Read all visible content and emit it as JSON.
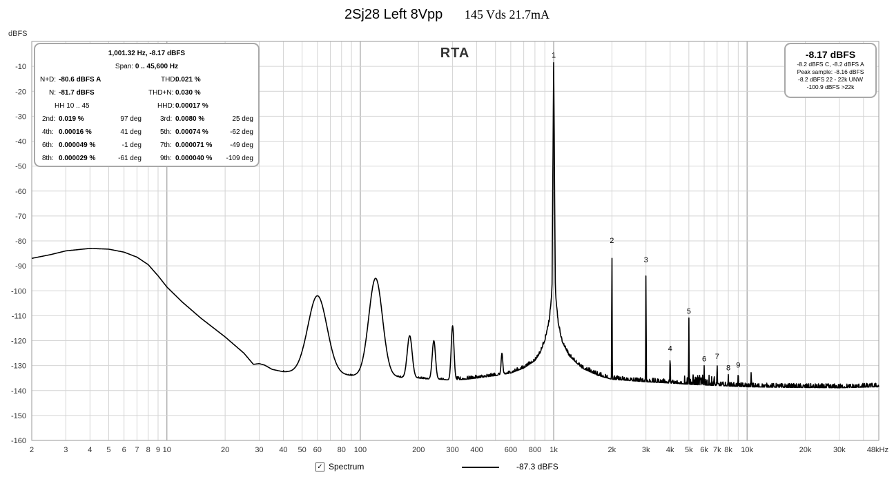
{
  "title": {
    "main": "2Sj28 Left  8Vpp",
    "sub": "145 Vds 21.7mA"
  },
  "chart_data": {
    "type": "line",
    "panel_label": "RTA",
    "ylabel": "dBFS",
    "xlabel_unit": "kHz",
    "xscale": "log",
    "xlim": [
      2,
      48000
    ],
    "ylim": [
      -160,
      0
    ],
    "grid": true,
    "y_ticks": [
      -10,
      -20,
      -30,
      -40,
      -50,
      -60,
      -70,
      -80,
      -90,
      -100,
      -110,
      -120,
      -130,
      -140,
      -150,
      -160
    ],
    "x_ticks": [
      {
        "v": 2,
        "label": "2"
      },
      {
        "v": 3,
        "label": "3"
      },
      {
        "v": 4,
        "label": "4"
      },
      {
        "v": 5,
        "label": "5"
      },
      {
        "v": 6,
        "label": "6"
      },
      {
        "v": 7,
        "label": "7"
      },
      {
        "v": 8,
        "label": "8"
      },
      {
        "v": 9,
        "label": "9"
      },
      {
        "v": 10,
        "label": "10"
      },
      {
        "v": 20,
        "label": "20"
      },
      {
        "v": 30,
        "label": "30"
      },
      {
        "v": 40,
        "label": "40"
      },
      {
        "v": 50,
        "label": "50"
      },
      {
        "v": 60,
        "label": "60"
      },
      {
        "v": 80,
        "label": "80"
      },
      {
        "v": 100,
        "label": "100"
      },
      {
        "v": 200,
        "label": "200"
      },
      {
        "v": 300,
        "label": "300"
      },
      {
        "v": 400,
        "label": "400"
      },
      {
        "v": 600,
        "label": "600"
      },
      {
        "v": 800,
        "label": "800"
      },
      {
        "v": 1000,
        "label": "1k"
      },
      {
        "v": 2000,
        "label": "2k"
      },
      {
        "v": 3000,
        "label": "3k"
      },
      {
        "v": 4000,
        "label": "4k"
      },
      {
        "v": 5000,
        "label": "5k"
      },
      {
        "v": 6000,
        "label": "6k"
      },
      {
        "v": 7000,
        "label": "7k"
      },
      {
        "v": 8000,
        "label": "8k"
      },
      {
        "v": 10000,
        "label": "10k"
      },
      {
        "v": 20000,
        "label": "20k"
      },
      {
        "v": 30000,
        "label": "30k"
      },
      {
        "v": 48000,
        "label": "48kHz"
      }
    ],
    "series": [
      {
        "name": "Spectrum",
        "color": "#000000",
        "baseline": [
          [
            2,
            -87
          ],
          [
            2.5,
            -85.5
          ],
          [
            3,
            -84
          ],
          [
            4,
            -83
          ],
          [
            5,
            -83.3
          ],
          [
            6,
            -84.5
          ],
          [
            7,
            -86.5
          ],
          [
            8,
            -89.5
          ],
          [
            9,
            -94
          ],
          [
            10,
            -98.5
          ],
          [
            12,
            -104.5
          ],
          [
            15,
            -111
          ],
          [
            20,
            -118.5
          ],
          [
            25,
            -125
          ],
          [
            28,
            -129.5
          ],
          [
            30,
            -129.2
          ],
          [
            32,
            -129.8
          ],
          [
            35,
            -131.5
          ],
          [
            40,
            -132.5
          ],
          [
            45,
            -132.8
          ],
          [
            50,
            -133
          ],
          [
            55,
            -133.5
          ],
          [
            70,
            -133.5
          ],
          [
            90,
            -134
          ],
          [
            100,
            -134
          ],
          [
            110,
            -134.2
          ],
          [
            150,
            -134.5
          ],
          [
            175,
            -135
          ],
          [
            200,
            -135
          ],
          [
            230,
            -135.5
          ],
          [
            260,
            -135.5
          ],
          [
            290,
            -135.8
          ],
          [
            350,
            -135.5
          ],
          [
            400,
            -135
          ],
          [
            450,
            -134.5
          ],
          [
            500,
            -134
          ],
          [
            600,
            -133
          ],
          [
            700,
            -131
          ],
          [
            800,
            -128
          ],
          [
            850,
            -125
          ],
          [
            900,
            -120
          ],
          [
            950,
            -112
          ],
          [
            980,
            -100
          ],
          [
            1000,
            -8.2
          ],
          [
            1020,
            -100
          ],
          [
            1050,
            -112
          ],
          [
            1100,
            -120
          ],
          [
            1200,
            -126
          ],
          [
            1400,
            -131
          ],
          [
            1700,
            -134
          ],
          [
            2000,
            -135.5
          ],
          [
            3000,
            -136.5
          ],
          [
            4000,
            -137
          ],
          [
            5000,
            -137.5
          ],
          [
            7000,
            -138
          ],
          [
            10000,
            -138.5
          ],
          [
            15000,
            -138.7
          ],
          [
            20000,
            -138.8
          ],
          [
            30000,
            -138.9
          ],
          [
            48000,
            -138.5
          ]
        ],
        "peaks": [
          {
            "f": 60,
            "db": -102,
            "w": 0.07
          },
          {
            "f": 120,
            "db": -95,
            "w": 0.05
          },
          {
            "f": 180,
            "db": -118,
            "w": 0.018
          },
          {
            "f": 240,
            "db": -120,
            "w": 0.012
          },
          {
            "f": 300,
            "db": -114,
            "w": 0.01
          },
          {
            "f": 540,
            "db": -125,
            "w": 0.006
          },
          {
            "f": 2000,
            "db": -82.5,
            "w": 0.0015
          },
          {
            "f": 3000,
            "db": -90.3,
            "w": 0.0015
          },
          {
            "f": 4000,
            "db": -125.8,
            "w": 0.0015
          },
          {
            "f": 5000,
            "db": -110.8,
            "w": 0.0015
          },
          {
            "f": 6000,
            "db": -130,
            "w": 0.0015
          },
          {
            "f": 7000,
            "db": -129,
            "w": 0.0015
          },
          {
            "f": 8000,
            "db": -133.5,
            "w": 0.0015
          },
          {
            "f": 9000,
            "db": -132.5,
            "w": 0.0015
          },
          {
            "f": 10500,
            "db": -132.5,
            "w": 0.0015
          }
        ],
        "noise_band": {
          "from": 4700,
          "to": 6800,
          "amp": 4
        }
      }
    ],
    "harmonic_markers": [
      {
        "label": "1",
        "f": 1000,
        "db": -8.2
      },
      {
        "label": "2",
        "f": 2000,
        "db": -82.5
      },
      {
        "label": "3",
        "f": 3000,
        "db": -90.3
      },
      {
        "label": "4",
        "f": 4000,
        "db": -125.8
      },
      {
        "label": "5",
        "f": 5000,
        "db": -110.8
      },
      {
        "label": "6",
        "f": 6000,
        "db": -130
      },
      {
        "label": "7",
        "f": 7000,
        "db": -129
      },
      {
        "label": "8",
        "f": 8000,
        "db": -133.5
      },
      {
        "label": "9",
        "f": 9000,
        "db": -132.5
      }
    ]
  },
  "stats": {
    "header": "1,001.32 Hz, -8.17 dBFS",
    "span_label": "Span:",
    "span_value": "0 .. 45,600 Hz",
    "nd_label": "N+D:",
    "nd_value": "-80.6 dBFS A",
    "thd_label": "THD:",
    "thd_value": "0.021 %",
    "n_label": "N:",
    "n_value": "-81.7 dBFS",
    "thdn_label": "THD+N:",
    "thdn_value": "0.030 %",
    "hh_label": "HH 10 .. 45",
    "hhd_label": "HHD:",
    "hhd_value": "0.00017 %",
    "harmonics": [
      {
        "l1": "2nd:",
        "v1": "0.019 %",
        "p1": "97 deg",
        "l2": "3rd:",
        "v2": "0.0080 %",
        "p2": "25 deg"
      },
      {
        "l1": "4th:",
        "v1": "0.00016 %",
        "p1": "41 deg",
        "l2": "5th:",
        "v2": "0.00074 %",
        "p2": "-62 deg"
      },
      {
        "l1": "6th:",
        "v1": "0.000049 %",
        "p1": "-1 deg",
        "l2": "7th:",
        "v2": "0.000071 %",
        "p2": "-49 deg"
      },
      {
        "l1": "8th:",
        "v1": "0.000029 %",
        "p1": "-61 deg",
        "l2": "9th:",
        "v2": "0.000040 %",
        "p2": "-109 deg"
      }
    ]
  },
  "level": {
    "big": "-8.17 dBFS",
    "line1": "-8.2 dBFS C, -8.2 dBFS A",
    "line2": "Peak sample: -8.16 dBFS",
    "line3": "-8.2 dBFS 22 - 22k UNW",
    "line4": "-100.9 dBFS >22k"
  },
  "legend": {
    "checked": true,
    "label": "Spectrum",
    "value": "-87.3 dBFS"
  }
}
